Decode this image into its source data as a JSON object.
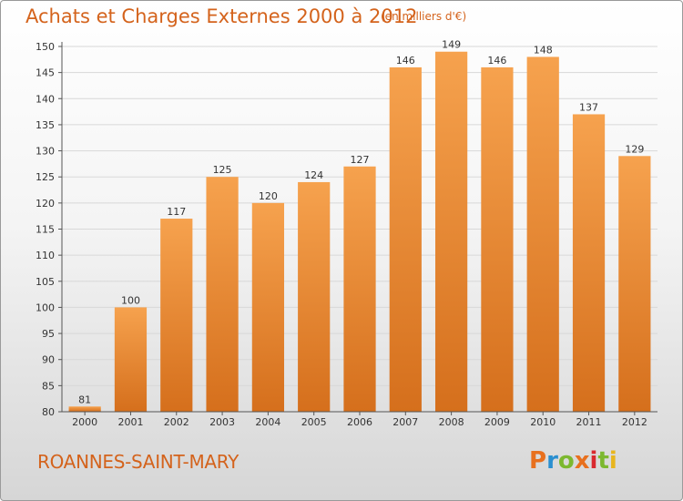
{
  "header": {
    "title": "Achats et Charges Externes 2000 à 2012",
    "subtitle": "(en milliers d'€)"
  },
  "footer": {
    "commune": "ROANNES-SAINT-MARY",
    "logo_text": "Proxiti",
    "logo_colors": [
      "#e8701e",
      "#2a8fd0",
      "#7cb82f",
      "#e8701e",
      "#d9292f",
      "#7cb82f",
      "#e8b51e"
    ]
  },
  "colors": {
    "bar_light": "#f6a24e",
    "bar_dark": "#d56f1c",
    "accent": "#d4631c",
    "grid": "#d8d8d8"
  },
  "chart_data": {
    "type": "bar",
    "title": "Achats et Charges Externes 2000 à 2012",
    "subtitle": "(en milliers d'€)",
    "categories": [
      "2000",
      "2001",
      "2002",
      "2003",
      "2004",
      "2005",
      "2006",
      "2007",
      "2008",
      "2009",
      "2010",
      "2011",
      "2012"
    ],
    "values": [
      81,
      100,
      117,
      125,
      120,
      124,
      127,
      146,
      149,
      146,
      148,
      137,
      129
    ],
    "ylim": [
      80,
      150
    ],
    "yticks": [
      80,
      85,
      90,
      95,
      100,
      105,
      110,
      115,
      120,
      125,
      130,
      135,
      140,
      145,
      150
    ],
    "xlabel": "",
    "ylabel": "",
    "grid": true,
    "legend": "none"
  }
}
